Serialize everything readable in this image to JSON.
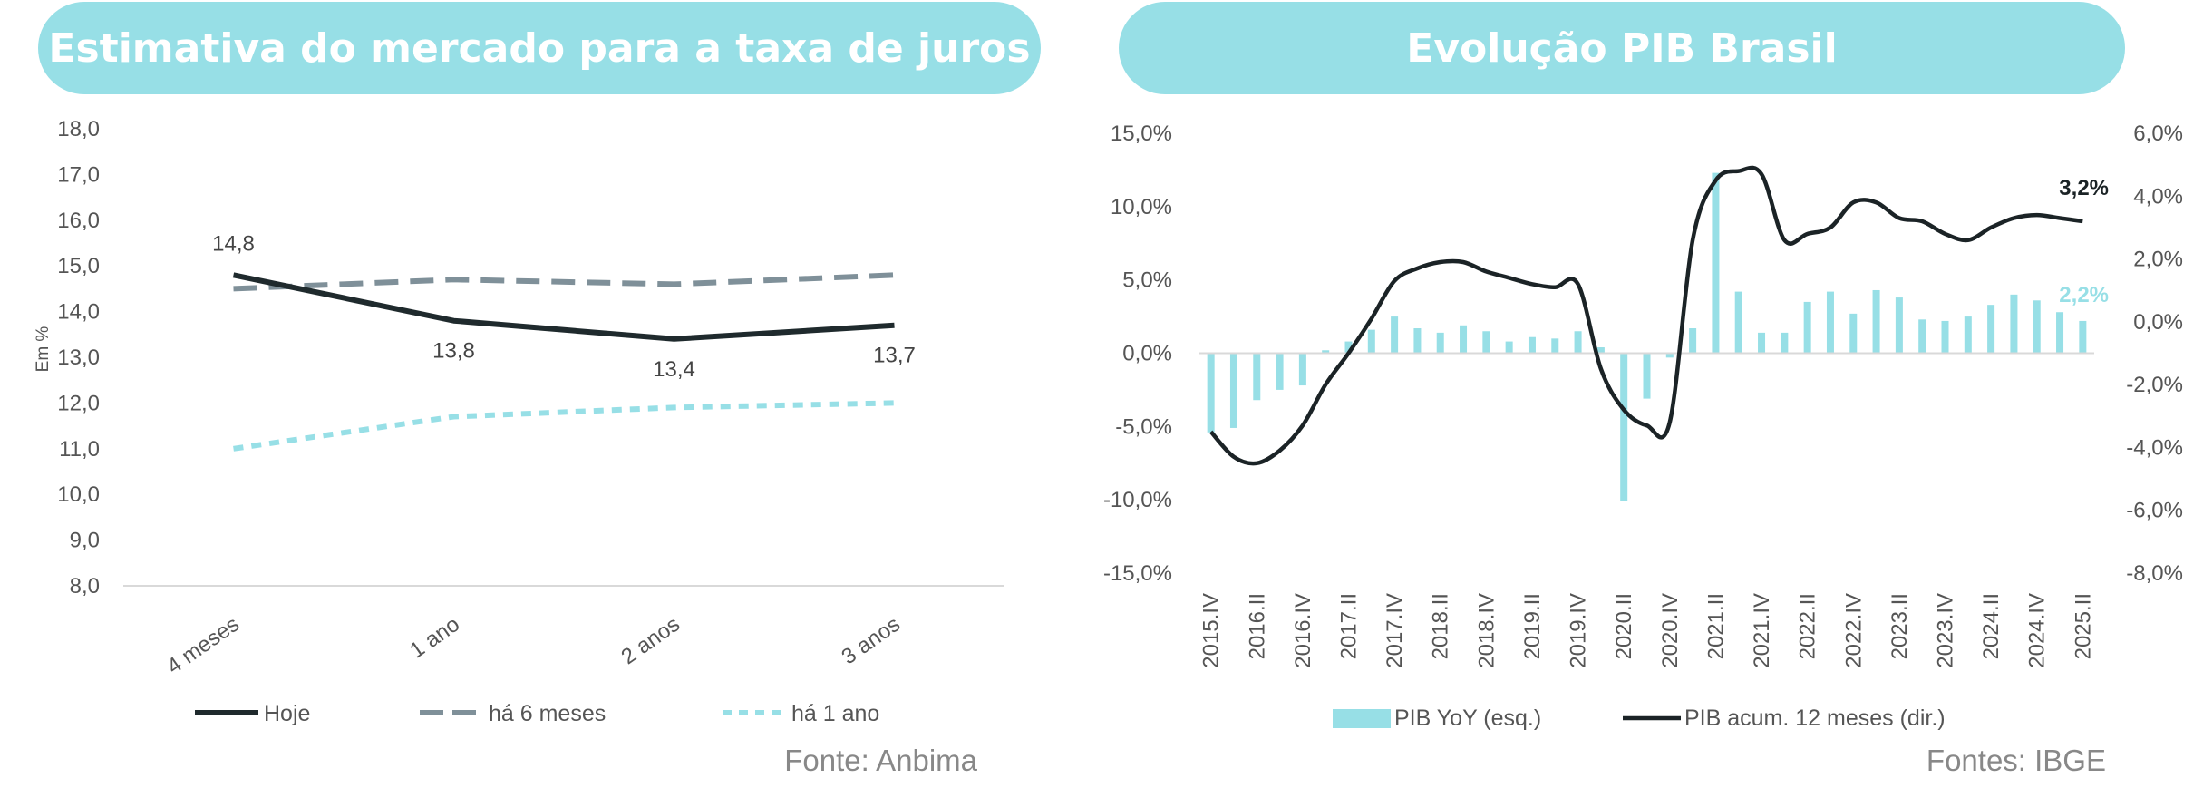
{
  "panels": {
    "left_title": "Estimativa do mercado para a taxa de juros",
    "right_title": "Evolução PIB Brasil",
    "left_source": "Fonte: Anbima",
    "right_source": "Fontes: IBGE"
  },
  "colors": {
    "title_bg": "#97dfe6",
    "hoje": "#1f2a2d",
    "ha6": "#7f9099",
    "ha1": "#97dfe6",
    "bars": "#97dfe6",
    "pib_line": "#1b2326",
    "last_bar_label": "#97dfe6"
  },
  "chart_data": [
    {
      "type": "line",
      "title": "Estimativa do mercado para a taxa de juros",
      "ylabel": "Em %",
      "categories": [
        "4 meses",
        "1 ano",
        "2 anos",
        "3 anos"
      ],
      "ylim": [
        8.0,
        18.0
      ],
      "ytick_step": 1.0,
      "yticks": [
        "18,0",
        "17,0",
        "16,0",
        "15,0",
        "14,0",
        "13,0",
        "12,0",
        "11,0",
        "10,0",
        "9,0",
        "8,0"
      ],
      "series": [
        {
          "name": "Hoje",
          "values": [
            14.8,
            13.8,
            13.4,
            13.7
          ],
          "labels": [
            "14,8",
            "13,8",
            "13,4",
            "13,7"
          ],
          "style": "solid"
        },
        {
          "name": "há 6 meses",
          "values": [
            14.5,
            14.7,
            14.6,
            14.8
          ],
          "style": "dashed"
        },
        {
          "name": "há 1 ano",
          "values": [
            11.0,
            11.7,
            11.9,
            12.0
          ],
          "style": "dotted"
        }
      ],
      "legend_position": "bottom",
      "source": "Fonte: Anbima"
    },
    {
      "type": "bar+line",
      "title": "Evolução PIB Brasil",
      "x": [
        "2015.IV",
        "2016.I",
        "2016.II",
        "2016.III",
        "2016.IV",
        "2017.I",
        "2017.II",
        "2017.III",
        "2017.IV",
        "2018.I",
        "2018.II",
        "2018.III",
        "2018.IV",
        "2019.I",
        "2019.II",
        "2019.III",
        "2019.IV",
        "2020.I",
        "2020.II",
        "2020.III",
        "2020.IV",
        "2021.I",
        "2021.II",
        "2021.III",
        "2021.IV",
        "2022.I",
        "2022.II",
        "2022.III",
        "2022.IV",
        "2023.I",
        "2023.II",
        "2023.III",
        "2023.IV",
        "2024.I",
        "2024.II",
        "2024.III",
        "2024.IV",
        "2025.I",
        "2025.II"
      ],
      "x_tick_labels": [
        "2015.IV",
        "2016.II",
        "2016.IV",
        "2017.II",
        "2017.IV",
        "2018.II",
        "2018.IV",
        "2019.II",
        "2019.IV",
        "2020.II",
        "2020.IV",
        "2021.II",
        "2021.IV",
        "2022.II",
        "2022.IV",
        "2023.II",
        "2023.IV",
        "2024.II",
        "2024.IV",
        "2025.II"
      ],
      "left_axis": {
        "ylim": [
          -15.0,
          15.0
        ],
        "step": 5.0,
        "ticks": [
          "15,0%",
          "10,0%",
          "5,0%",
          "0,0%",
          "-5,0%",
          "-10,0%",
          "-15,0%"
        ]
      },
      "right_axis": {
        "ylim": [
          -8.0,
          6.0
        ],
        "step": 2.0,
        "ticks": [
          "6,0%",
          "4,0%",
          "2,0%",
          "0,0%",
          "-2,0%",
          "-4,0%",
          "-6,0%",
          "-8,0%"
        ]
      },
      "series": [
        {
          "name": "PIB YoY (esq.)",
          "axis": "left",
          "kind": "bar",
          "values": [
            -5.4,
            -5.1,
            -3.2,
            -2.5,
            -2.2,
            0.2,
            0.8,
            1.6,
            2.5,
            1.7,
            1.4,
            1.9,
            1.5,
            0.8,
            1.1,
            1.0,
            1.5,
            0.4,
            -10.1,
            -3.1,
            -0.3,
            1.7,
            12.3,
            4.2,
            1.4,
            1.4,
            3.5,
            4.2,
            2.7,
            4.3,
            3.8,
            2.3,
            2.2,
            2.5,
            3.3,
            4.0,
            3.6,
            2.8,
            2.2
          ],
          "last_label": "2,2%"
        },
        {
          "name": "PIB acum. 12 meses (dir.)",
          "axis": "right",
          "kind": "line",
          "values": [
            -3.5,
            -4.3,
            -4.5,
            -4.1,
            -3.3,
            -2.0,
            -1.0,
            0.1,
            1.3,
            1.7,
            1.9,
            1.9,
            1.6,
            1.4,
            1.2,
            1.1,
            1.2,
            -1.5,
            -2.8,
            -3.3,
            -3.2,
            2.6,
            4.5,
            4.8,
            4.7,
            2.6,
            2.8,
            3.0,
            3.8,
            3.8,
            3.3,
            3.2,
            2.8,
            2.6,
            3.0,
            3.3,
            3.4,
            3.3,
            3.2
          ],
          "last_label": "3,2%"
        }
      ],
      "legend_position": "bottom",
      "source": "Fontes: IBGE"
    }
  ]
}
